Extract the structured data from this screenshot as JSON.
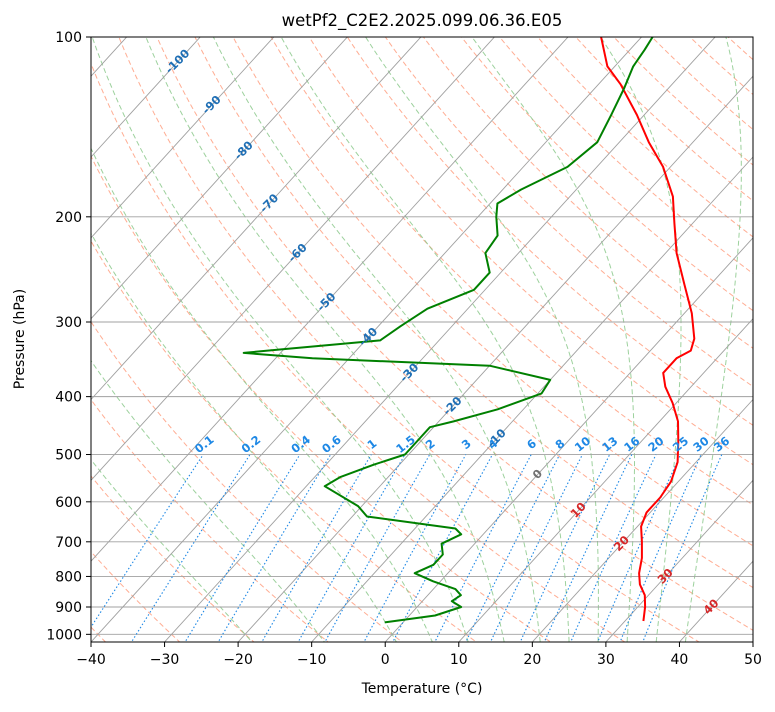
{
  "chart_data": {
    "type": "line",
    "subtype": "skew-t log-p diagram",
    "title": "wetPf2_C2E2.2025.099.06.36.E05",
    "xlabel": "Temperature (°C)",
    "ylabel": "Pressure (hPa)",
    "xlim": [
      -40,
      50
    ],
    "ylim": [
      1030,
      100
    ],
    "y_scale": "log",
    "grid": true,
    "x_ticks": [
      -40,
      -30,
      -20,
      -10,
      0,
      10,
      20,
      30,
      40,
      50
    ],
    "y_ticks": [
      100,
      200,
      300,
      400,
      500,
      600,
      700,
      800,
      900,
      1000
    ],
    "series": [
      {
        "color": "#ff0000",
        "points": [
          {
            "p": 950,
            "t": 32.5
          },
          {
            "p": 900,
            "t": 31.0
          },
          {
            "p": 860,
            "t": 29.5
          },
          {
            "p": 825,
            "t": 27.5
          },
          {
            "p": 790,
            "t": 26.0
          },
          {
            "p": 745,
            "t": 24.5
          },
          {
            "p": 700,
            "t": 22.5
          },
          {
            "p": 660,
            "t": 20.5
          },
          {
            "p": 625,
            "t": 19.5
          },
          {
            "p": 590,
            "t": 19.5
          },
          {
            "p": 555,
            "t": 19.0
          },
          {
            "p": 515,
            "t": 17.5
          },
          {
            "p": 475,
            "t": 15.0
          },
          {
            "p": 440,
            "t": 12.5
          },
          {
            "p": 410,
            "t": 9.5
          },
          {
            "p": 385,
            "t": 6.5
          },
          {
            "p": 365,
            "t": 4.5
          },
          {
            "p": 345,
            "t": 4.5
          },
          {
            "p": 335,
            "t": 5.5
          },
          {
            "p": 320,
            "t": 4.5
          },
          {
            "p": 290,
            "t": 1.0
          },
          {
            "p": 260,
            "t": -3.5
          },
          {
            "p": 230,
            "t": -8.5
          },
          {
            "p": 205,
            "t": -12.5
          },
          {
            "p": 185,
            "t": -16.0
          },
          {
            "p": 165,
            "t": -21.0
          },
          {
            "p": 150,
            "t": -26.0
          },
          {
            "p": 135,
            "t": -31.0
          },
          {
            "p": 120,
            "t": -37.0
          },
          {
            "p": 112,
            "t": -41.0
          },
          {
            "p": 100,
            "t": -45.5
          }
        ]
      },
      {
        "color": "#008000",
        "points": [
          {
            "p": 955,
            "t": -2.5
          },
          {
            "p": 930,
            "t": 3.5
          },
          {
            "p": 900,
            "t": 6.0
          },
          {
            "p": 880,
            "t": 4.0
          },
          {
            "p": 860,
            "t": 4.5
          },
          {
            "p": 840,
            "t": 3.0
          },
          {
            "p": 815,
            "t": -1.0
          },
          {
            "p": 790,
            "t": -4.5
          },
          {
            "p": 765,
            "t": -3.0
          },
          {
            "p": 735,
            "t": -3.0
          },
          {
            "p": 705,
            "t": -4.5
          },
          {
            "p": 680,
            "t": -3.0
          },
          {
            "p": 665,
            "t": -4.5
          },
          {
            "p": 635,
            "t": -18.0
          },
          {
            "p": 610,
            "t": -20.5
          },
          {
            "p": 565,
            "t": -27.5
          },
          {
            "p": 545,
            "t": -26.5
          },
          {
            "p": 520,
            "t": -23.5
          },
          {
            "p": 500,
            "t": -20.5
          },
          {
            "p": 470,
            "t": -20.5
          },
          {
            "p": 450,
            "t": -20.5
          },
          {
            "p": 440,
            "t": -18.0
          },
          {
            "p": 420,
            "t": -13.5
          },
          {
            "p": 395,
            "t": -9.5
          },
          {
            "p": 375,
            "t": -10.0
          },
          {
            "p": 355,
            "t": -20.0
          },
          {
            "p": 345,
            "t": -45.0
          },
          {
            "p": 338,
            "t": -55.0
          },
          {
            "p": 333,
            "t": -50.0
          },
          {
            "p": 322,
            "t": -38.0
          },
          {
            "p": 305,
            "t": -37.0
          },
          {
            "p": 285,
            "t": -35.5
          },
          {
            "p": 265,
            "t": -31.5
          },
          {
            "p": 248,
            "t": -31.5
          },
          {
            "p": 230,
            "t": -34.5
          },
          {
            "p": 215,
            "t": -35.0
          },
          {
            "p": 200,
            "t": -37.5
          },
          {
            "p": 190,
            "t": -39.0
          },
          {
            "p": 180,
            "t": -37.5
          },
          {
            "p": 165,
            "t": -34.0
          },
          {
            "p": 150,
            "t": -33.0
          },
          {
            "p": 135,
            "t": -34.5
          },
          {
            "p": 122,
            "t": -36.0
          },
          {
            "p": 112,
            "t": -37.5
          },
          {
            "p": 105,
            "t": -38.0
          },
          {
            "p": 100,
            "t": -38.5
          }
        ]
      }
    ],
    "isotherm_labels": [
      {
        "t": -100,
        "p": 110,
        "text": "-100"
      },
      {
        "t": -90,
        "p": 130,
        "text": "-90"
      },
      {
        "t": -80,
        "p": 155,
        "text": "-80"
      },
      {
        "t": -70,
        "p": 190,
        "text": "-70"
      },
      {
        "t": -60,
        "p": 230,
        "text": "-60"
      },
      {
        "t": -50,
        "p": 278,
        "text": "-50"
      },
      {
        "t": -40,
        "p": 318,
        "text": "-40"
      },
      {
        "t": -30,
        "p": 365,
        "text": "-30"
      },
      {
        "t": -20,
        "p": 415,
        "text": "-20"
      },
      {
        "t": -10,
        "p": 470,
        "text": "-10"
      },
      {
        "t": 0,
        "p": 540,
        "text": "0"
      },
      {
        "t": 10,
        "p": 620,
        "text": "10"
      },
      {
        "t": 20,
        "p": 705,
        "text": "20"
      },
      {
        "t": 30,
        "p": 800,
        "text": "30"
      },
      {
        "t": 40,
        "p": 900,
        "text": "40"
      }
    ],
    "mixing_ratio_labels": [
      "0.1",
      "0.2",
      "0.4",
      "0.6",
      "1",
      "1.5",
      "2",
      "3",
      "4",
      "6",
      "8",
      "10",
      "13",
      "16",
      "20",
      "25",
      "30",
      "36"
    ],
    "colors": {
      "temperature": "#ff0000",
      "dewpoint": "#008000",
      "isotherm": "#a0a0a0",
      "isobar": "#a0a0a0",
      "dry_adiabat": "#ff9f80",
      "moist_adiabat": "#8cc98c",
      "mixing_ratio": "#1e88e5",
      "cold_isotherm_label": "#1f6fb5",
      "zero_label": "#707070",
      "warm_isotherm_label": "#d62728"
    }
  }
}
